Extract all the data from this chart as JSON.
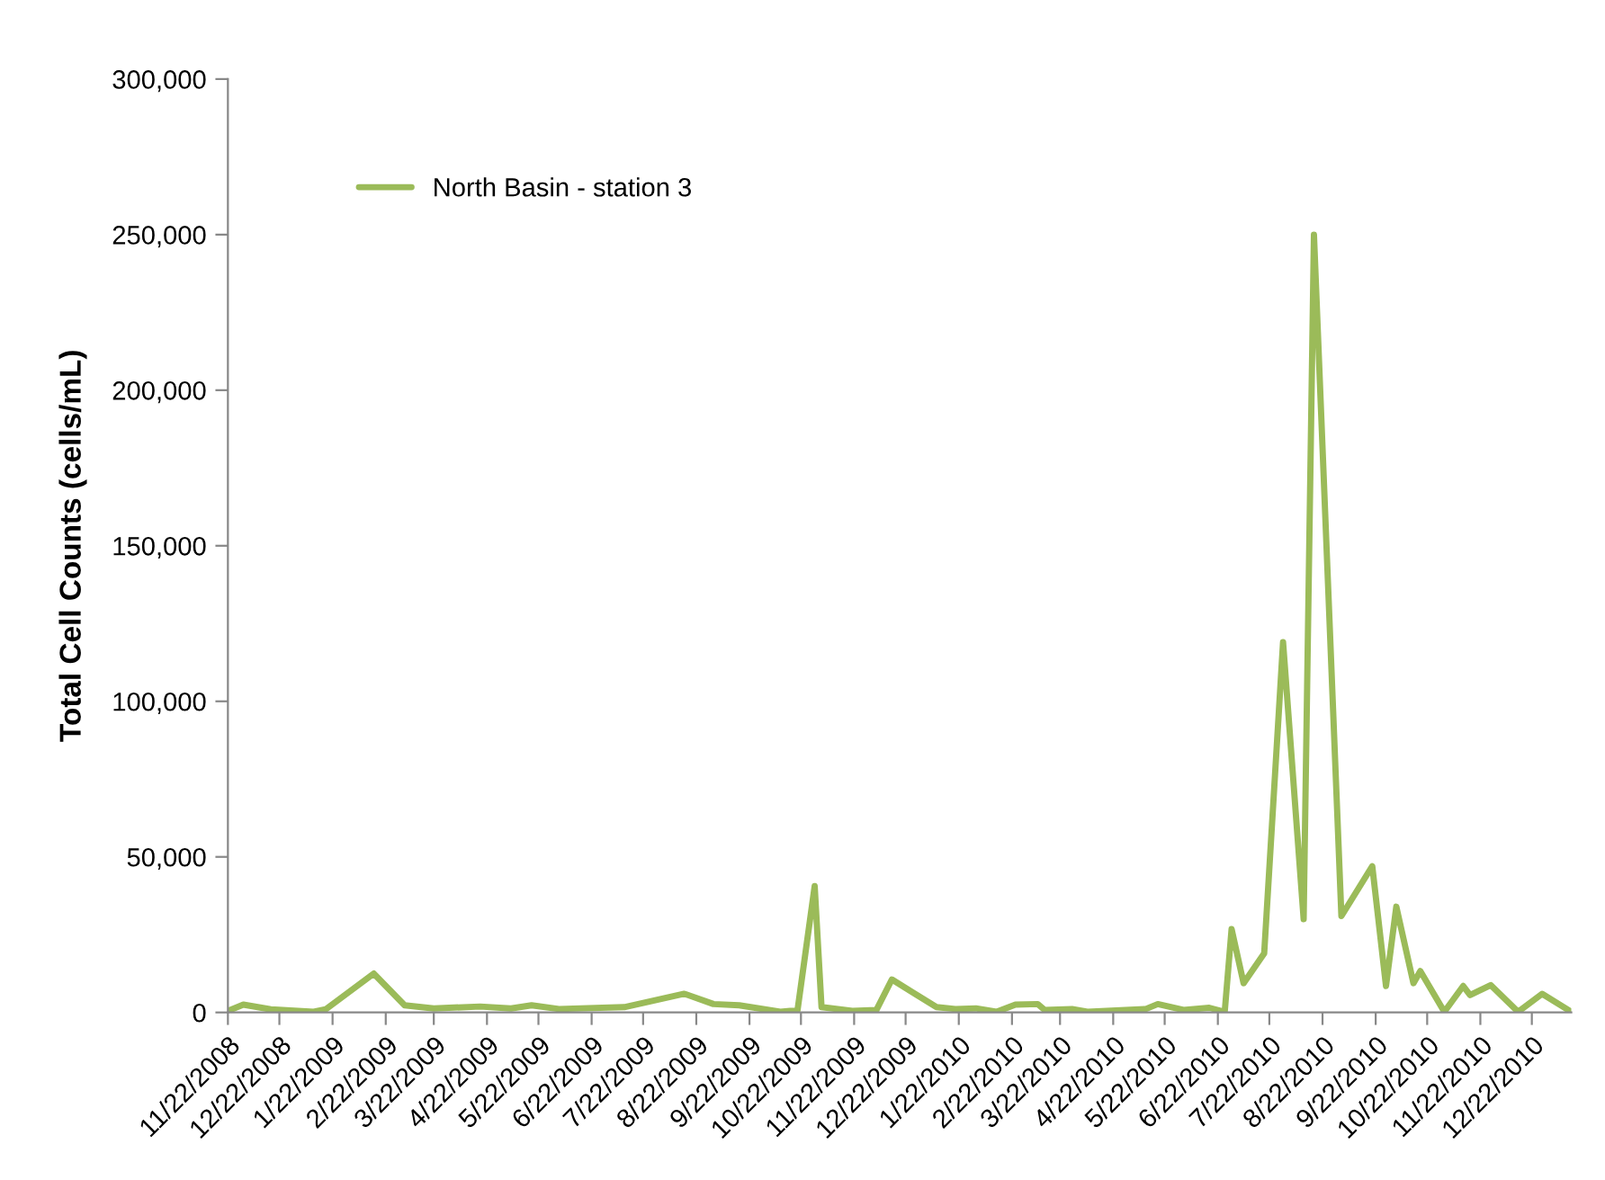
{
  "chart_data": {
    "type": "line",
    "ylabel": "Total Cell Counts (cells/mL)",
    "x": [
      "2008-11-22",
      "2008-12-01",
      "2008-12-17",
      "2009-01-11",
      "2009-01-18",
      "2009-02-15",
      "2009-03-05",
      "2009-03-22",
      "2009-04-18",
      "2009-05-06",
      "2009-05-18",
      "2009-06-03",
      "2009-07-11",
      "2009-08-15",
      "2009-09-01",
      "2009-09-16",
      "2009-10-10",
      "2009-10-20",
      "2009-10-30",
      "2009-11-03",
      "2009-11-21",
      "2009-12-05",
      "2009-12-14",
      "2010-01-09",
      "2010-01-20",
      "2010-02-01",
      "2010-02-13",
      "2010-02-24",
      "2010-03-09",
      "2010-03-13",
      "2010-03-29",
      "2010-04-07",
      "2010-05-11",
      "2010-05-18",
      "2010-06-02",
      "2010-06-17",
      "2010-06-26",
      "2010-06-30",
      "2010-07-07",
      "2010-07-19",
      "2010-07-30",
      "2010-08-11",
      "2010-08-17",
      "2010-09-02",
      "2010-09-20",
      "2010-09-28",
      "2010-10-04",
      "2010-10-14",
      "2010-10-18",
      "2010-11-01",
      "2010-11-12",
      "2010-11-16",
      "2010-11-28",
      "2010-12-14",
      "2010-12-28",
      "2011-01-14"
    ],
    "series": [
      {
        "name": "North Basin - station 3",
        "color": "#9bbb59",
        "values": [
          500,
          2500,
          1000,
          200,
          1000,
          12500,
          2300,
          1300,
          1900,
          1300,
          2300,
          1100,
          1700,
          6000,
          2700,
          2300,
          200,
          700,
          40600,
          1700,
          500,
          800,
          10600,
          1700,
          1100,
          1300,
          200,
          2500,
          2700,
          800,
          1100,
          200,
          1100,
          2700,
          800,
          1500,
          200,
          26800,
          9400,
          19000,
          119000,
          30000,
          250000,
          31000,
          47000,
          8500,
          34000,
          9400,
          13300,
          200,
          8500,
          5600,
          8800,
          200,
          6000,
          200
        ]
      }
    ],
    "xlim": [
      "2008-11-22",
      "2011-01-14"
    ],
    "xticks": [
      {
        "value": "2008-11-22",
        "label": "11/22/2008"
      },
      {
        "value": "2008-12-22",
        "label": "12/22/2008"
      },
      {
        "value": "2009-01-22",
        "label": "1/22/2009"
      },
      {
        "value": "2009-02-22",
        "label": "2/22/2009"
      },
      {
        "value": "2009-03-22",
        "label": "3/22/2009"
      },
      {
        "value": "2009-04-22",
        "label": "4/22/2009"
      },
      {
        "value": "2009-05-22",
        "label": "5/22/2009"
      },
      {
        "value": "2009-06-22",
        "label": "6/22/2009"
      },
      {
        "value": "2009-07-22",
        "label": "7/22/2009"
      },
      {
        "value": "2009-08-22",
        "label": "8/22/2009"
      },
      {
        "value": "2009-09-22",
        "label": "9/22/2009"
      },
      {
        "value": "2009-10-22",
        "label": "10/22/2009"
      },
      {
        "value": "2009-11-22",
        "label": "11/22/2009"
      },
      {
        "value": "2009-12-22",
        "label": "12/22/2009"
      },
      {
        "value": "2010-01-22",
        "label": "1/22/2010"
      },
      {
        "value": "2010-02-22",
        "label": "2/22/2010"
      },
      {
        "value": "2010-03-22",
        "label": "3/22/2010"
      },
      {
        "value": "2010-04-22",
        "label": "4/22/2010"
      },
      {
        "value": "2010-05-22",
        "label": "5/22/2010"
      },
      {
        "value": "2010-06-22",
        "label": "6/22/2010"
      },
      {
        "value": "2010-07-22",
        "label": "7/22/2010"
      },
      {
        "value": "2010-08-22",
        "label": "8/22/2010"
      },
      {
        "value": "2010-09-22",
        "label": "9/22/2010"
      },
      {
        "value": "2010-10-22",
        "label": "10/22/2010"
      },
      {
        "value": "2010-11-22",
        "label": "11/22/2010"
      },
      {
        "value": "2010-12-22",
        "label": "12/22/2010"
      }
    ],
    "ylim": [
      0,
      300000
    ],
    "yticks": [
      0,
      {
        "value": 50000,
        "label": "50,000"
      },
      {
        "value": 100000,
        "label": "100,000"
      },
      {
        "value": 150000,
        "label": "150,000"
      },
      {
        "value": 200000,
        "label": "200,000"
      },
      {
        "value": 250000,
        "label": "250,000"
      },
      {
        "value": 300000,
        "label": "300,000"
      }
    ],
    "grid": false,
    "legend": "top left",
    "marker": "none",
    "line_style": "solid"
  }
}
